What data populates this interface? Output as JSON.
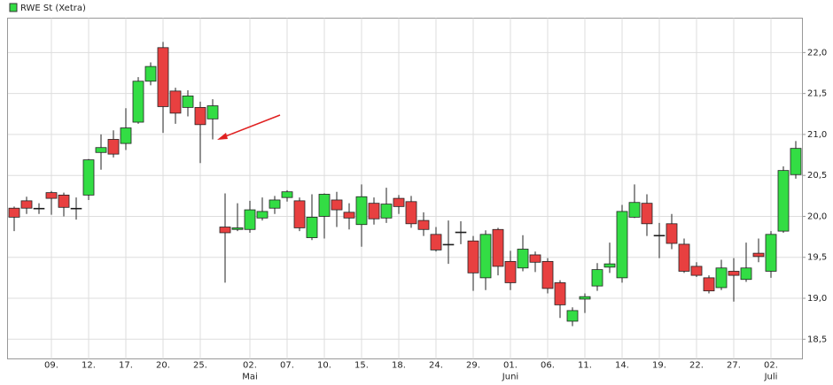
{
  "chart_data": {
    "type": "candlestick",
    "legend": "RWE St (Xetra)",
    "legend_color": "#33dd44",
    "up_color": "#33dd44",
    "down_color": "#e84040",
    "grid": true,
    "ylim": [
      18.26,
      22.42
    ],
    "yticks": [
      {
        "value": 18.5,
        "label": "18,5"
      },
      {
        "value": 19.0,
        "label": "19,0"
      },
      {
        "value": 19.5,
        "label": "19,5"
      },
      {
        "value": 20.0,
        "label": "20,0"
      },
      {
        "value": 20.5,
        "label": "20,5"
      },
      {
        "value": 21.0,
        "label": "21,0"
      },
      {
        "value": 21.5,
        "label": "21,5"
      },
      {
        "value": 22.0,
        "label": "22,0"
      }
    ],
    "categories": [
      null,
      null,
      null,
      "09.",
      null,
      null,
      "12.",
      null,
      null,
      "17.",
      null,
      null,
      "20.",
      null,
      null,
      "25.",
      null,
      null,
      null,
      {
        "label": "02.",
        "month": "Mai"
      },
      null,
      null,
      "07.",
      null,
      null,
      "10.",
      null,
      null,
      "15.",
      null,
      null,
      "18.",
      null,
      null,
      "24.",
      null,
      null,
      "29.",
      null,
      null,
      {
        "label": "01.",
        "month": "Juni"
      },
      null,
      null,
      "06.",
      null,
      null,
      "11.",
      null,
      null,
      "14.",
      null,
      null,
      "19.",
      null,
      null,
      "22.",
      null,
      null,
      "27.",
      null,
      null,
      {
        "label": "02.",
        "month": "Juli"
      },
      null,
      null
    ],
    "open": [
      20.1,
      20.19,
      20.1,
      20.29,
      20.26,
      20.1,
      20.26,
      20.78,
      20.94,
      20.89,
      21.15,
      21.65,
      22.06,
      21.53,
      21.33,
      21.33,
      21.19,
      19.87,
      19.84,
      19.84,
      19.98,
      20.1,
      20.23,
      20.19,
      19.74,
      20.0,
      20.2,
      20.05,
      19.9,
      20.16,
      19.98,
      20.22,
      20.18,
      19.95,
      19.78,
      19.66,
      19.81,
      19.7,
      19.25,
      19.84,
      19.45,
      19.37,
      19.53,
      19.45,
      19.19,
      18.72,
      18.99,
      19.15,
      19.38,
      19.25,
      19.99,
      20.16,
      19.77,
      19.91,
      19.66,
      19.39,
      19.25,
      19.13,
      19.33,
      19.23,
      19.55,
      19.33,
      19.82,
      20.51
    ],
    "high": [
      20.12,
      20.24,
      20.16,
      20.31,
      20.29,
      20.23,
      20.7,
      21.0,
      21.05,
      21.32,
      21.7,
      21.88,
      22.13,
      21.57,
      21.54,
      21.4,
      21.43,
      20.28,
      20.16,
      20.19,
      20.23,
      20.25,
      20.32,
      20.23,
      20.27,
      20.28,
      20.3,
      20.16,
      20.39,
      20.23,
      20.35,
      20.26,
      20.25,
      20.05,
      19.87,
      19.95,
      19.94,
      19.76,
      19.83,
      19.86,
      19.58,
      19.77,
      19.57,
      19.49,
      19.22,
      18.89,
      19.06,
      19.43,
      19.68,
      20.14,
      20.39,
      20.27,
      19.92,
      20.03,
      19.73,
      19.44,
      19.28,
      19.47,
      19.49,
      19.68,
      19.73,
      19.82,
      20.61,
      20.92
    ],
    "low": [
      19.82,
      20.03,
      20.03,
      20.02,
      20.0,
      19.96,
      20.2,
      20.57,
      20.72,
      20.81,
      21.13,
      21.6,
      21.02,
      21.13,
      21.22,
      20.65,
      20.94,
      19.19,
      19.82,
      19.8,
      19.95,
      20.03,
      20.18,
      19.82,
      19.71,
      19.73,
      19.87,
      19.84,
      19.63,
      19.9,
      19.92,
      20.03,
      19.86,
      19.76,
      19.57,
      19.42,
      19.66,
      19.09,
      19.1,
      19.28,
      19.1,
      19.33,
      19.32,
      19.06,
      18.76,
      18.66,
      18.82,
      19.09,
      19.31,
      19.19,
      19.98,
      19.76,
      19.49,
      19.6,
      19.31,
      19.26,
      19.06,
      19.1,
      18.96,
      19.2,
      19.44,
      19.25,
      19.8,
      20.46
    ],
    "close": [
      19.99,
      20.1,
      20.1,
      20.22,
      20.11,
      20.1,
      20.69,
      20.84,
      20.76,
      21.08,
      21.65,
      21.83,
      21.34,
      21.26,
      21.47,
      21.12,
      21.35,
      19.8,
      19.86,
      20.08,
      20.06,
      20.2,
      20.3,
      19.86,
      19.99,
      20.27,
      20.08,
      19.98,
      20.24,
      19.97,
      20.15,
      20.12,
      19.91,
      19.84,
      19.59,
      19.66,
      19.81,
      19.31,
      19.78,
      19.39,
      19.19,
      19.6,
      19.44,
      19.12,
      18.92,
      18.85,
      19.02,
      19.35,
      19.42,
      20.06,
      20.17,
      19.91,
      19.77,
      19.67,
      19.33,
      19.28,
      19.09,
      19.37,
      19.28,
      19.37,
      19.51,
      19.78,
      20.56,
      20.83
    ]
  }
}
